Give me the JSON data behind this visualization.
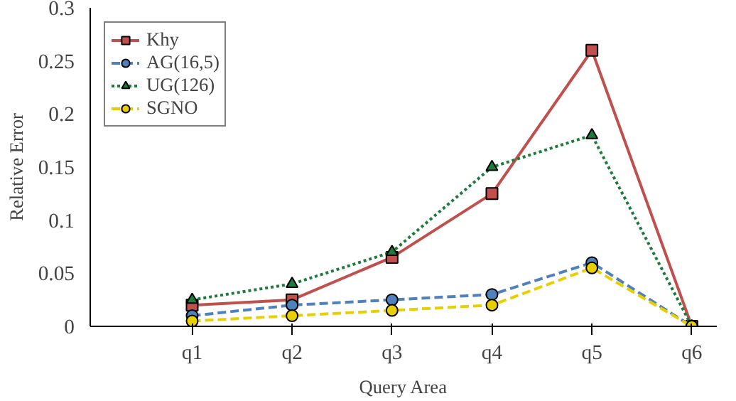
{
  "chart_data": {
    "type": "line",
    "xlabel": "Query Area",
    "ylabel": "Relative Error",
    "categories": [
      null,
      "q1",
      "q2",
      "q3",
      "q4",
      "q5",
      "q6"
    ],
    "ylim": [
      0,
      0.3
    ],
    "yticks": [
      0,
      0.05,
      0.1,
      0.15,
      0.2,
      0.25,
      0.3
    ],
    "grid": false,
    "legend": "top left",
    "series": [
      {
        "name": "Khy",
        "color": "#c0504d",
        "marker": "square",
        "line_style": "solid",
        "values": [
          null,
          0.02,
          0.025,
          0.065,
          0.125,
          0.26,
          0
        ]
      },
      {
        "name": "AG(16,5)",
        "color": "#4f81bd",
        "marker": "circle",
        "line_style": "dashed",
        "values": [
          null,
          0.01,
          0.02,
          0.025,
          0.03,
          0.06,
          0
        ]
      },
      {
        "name": "UG(126)",
        "color": "#1e7b3c",
        "marker": "triangle",
        "line_style": "dotted",
        "values": [
          null,
          0.025,
          0.04,
          0.07,
          0.15,
          0.18,
          0
        ]
      },
      {
        "name": "SGNO",
        "color": "#e8d000",
        "marker": "circle",
        "line_style": "dashed",
        "values": [
          null,
          0.005,
          0.01,
          0.015,
          0.02,
          0.055,
          0
        ]
      }
    ]
  }
}
